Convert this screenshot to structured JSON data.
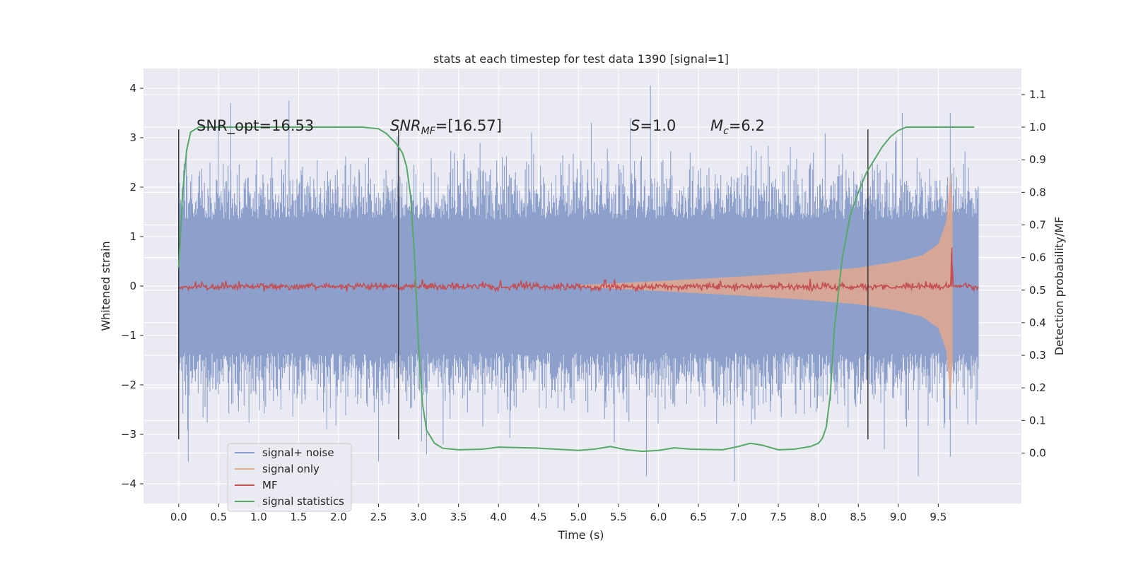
{
  "chart_data": {
    "type": "line",
    "title": "stats at each timestep for test data 1390 [signal=1]",
    "xlabel": "Time (s)",
    "ylabel": "Whitened strain",
    "y2label": "Detection probability/MF",
    "xlim": [
      -0.44,
      10.54
    ],
    "ylim": [
      -4.4,
      4.4
    ],
    "y2lim": [
      -0.155,
      1.18
    ],
    "x_ticks": [
      "0.0",
      "0.5",
      "1.0",
      "1.5",
      "2.0",
      "2.5",
      "3.0",
      "3.5",
      "4.0",
      "4.5",
      "5.0",
      "5.5",
      "6.0",
      "6.5",
      "7.0",
      "7.5",
      "8.0",
      "8.5",
      "9.0",
      "9.5"
    ],
    "y_ticks": [
      "4",
      "3",
      "2",
      "1",
      "0",
      "−1",
      "−2",
      "−3",
      "−4"
    ],
    "y2_ticks": [
      "1.1",
      "1.0",
      "0.9",
      "0.8",
      "0.7",
      "0.6",
      "0.5",
      "0.4",
      "0.3",
      "0.2",
      "0.1",
      "0.0"
    ],
    "annotations": [
      {
        "id": "snr-opt",
        "text": "SNR_opt=16.53"
      },
      {
        "id": "snr-mf",
        "prefix": "SNR",
        "sub": "MF",
        "suffix": "=[16.57]"
      },
      {
        "id": "s-stat",
        "prefix": "S",
        "suffix": "=1.0"
      },
      {
        "id": "mc",
        "prefix": "M",
        "sub": "c",
        "suffix": "=6.2"
      }
    ],
    "vertical_markers_x": [
      0.0,
      2.75,
      8.62
    ],
    "grid": true,
    "legend_position": "lower-left",
    "series": [
      {
        "name": "signal+ noise",
        "color": "#8da0cb",
        "axis": "left",
        "x_range": [
          0.0,
          10.0
        ],
        "envelope_typical": [
          -1.3,
          1.3
        ],
        "peaks": [
          [
            0.65,
            3.7
          ],
          [
            1.38,
            3.75
          ],
          [
            5.9,
            4.05
          ],
          [
            5.65,
            3.4
          ],
          [
            9.05,
            3.5
          ],
          [
            9.65,
            3.5
          ],
          [
            0.12,
            -3.55
          ],
          [
            2.5,
            -3.55
          ],
          [
            3.1,
            -3.4
          ],
          [
            5.85,
            -3.85
          ],
          [
            6.95,
            -3.95
          ],
          [
            9.25,
            -3.85
          ],
          [
            9.65,
            -3.45
          ]
        ]
      },
      {
        "name": "signal only",
        "color": "#e8a88a",
        "axis": "left",
        "x": [
          5.0,
          6.0,
          7.0,
          7.5,
          8.0,
          8.5,
          9.0,
          9.3,
          9.5,
          9.6,
          9.65,
          9.68
        ],
        "amplitude": [
          0.02,
          0.1,
          0.19,
          0.24,
          0.3,
          0.37,
          0.5,
          0.62,
          0.85,
          1.3,
          2.3,
          1.6
        ]
      },
      {
        "name": "MF",
        "color": "#c44e52",
        "axis": "right",
        "baseline": 0.51,
        "noise": 0.012,
        "peak": [
          9.67,
          0.63
        ]
      },
      {
        "name": "signal statistics",
        "color": "#55a868",
        "axis": "right",
        "x": [
          0.0,
          0.05,
          0.1,
          0.15,
          0.25,
          0.5,
          1.0,
          2.0,
          2.3,
          2.5,
          2.6,
          2.7,
          2.75,
          2.8,
          2.85,
          2.9,
          2.95,
          3.0,
          3.05,
          3.1,
          3.2,
          3.3,
          3.5,
          3.8,
          4.0,
          4.5,
          5.0,
          5.2,
          5.4,
          5.6,
          5.8,
          6.0,
          6.2,
          6.4,
          6.8,
          7.0,
          7.15,
          7.3,
          7.5,
          7.7,
          7.9,
          8.0,
          8.05,
          8.1,
          8.15,
          8.2,
          8.3,
          8.4,
          8.5,
          8.6,
          8.7,
          8.8,
          8.9,
          9.0,
          9.1,
          9.2,
          9.5,
          9.95
        ],
        "y": [
          0.57,
          0.8,
          0.93,
          0.985,
          1.0,
          1.0,
          1.0,
          1.0,
          1.0,
          0.995,
          0.98,
          0.955,
          0.94,
          0.92,
          0.88,
          0.79,
          0.6,
          0.33,
          0.15,
          0.07,
          0.03,
          0.015,
          0.01,
          0.012,
          0.018,
          0.015,
          0.008,
          0.012,
          0.02,
          0.01,
          0.005,
          0.008,
          0.016,
          0.012,
          0.01,
          0.02,
          0.03,
          0.024,
          0.01,
          0.012,
          0.02,
          0.03,
          0.045,
          0.08,
          0.18,
          0.38,
          0.6,
          0.73,
          0.8,
          0.86,
          0.9,
          0.94,
          0.97,
          0.99,
          1.0,
          1.0,
          1.0,
          1.0
        ]
      }
    ]
  }
}
